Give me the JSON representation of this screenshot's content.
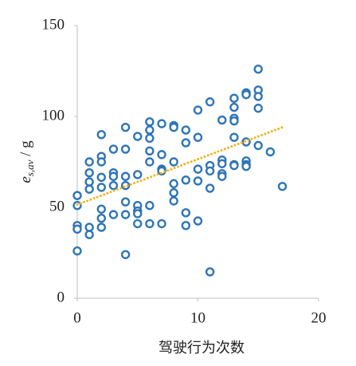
{
  "chart_data": {
    "type": "scatter",
    "xlabel": "驾驶行为次数",
    "ylabel": {
      "main": "e",
      "sub": "s,av",
      "rest": " / g"
    },
    "xlim": [
      0,
      20
    ],
    "xticks": [
      0,
      10,
      20
    ],
    "ylim": [
      0,
      150
    ],
    "yticks": [
      0,
      50,
      100,
      150
    ],
    "series": [
      {
        "color": "#2e75b6",
        "x": [
          0,
          0,
          0,
          0,
          0,
          1,
          1,
          1,
          1,
          1,
          1,
          2,
          2,
          2,
          2,
          2,
          2,
          2,
          2,
          3,
          3,
          3,
          3,
          3,
          4,
          4,
          4,
          4,
          4,
          4,
          4,
          5,
          5,
          5,
          5,
          5,
          5,
          6,
          6,
          6,
          6,
          6,
          6,
          6,
          7,
          7,
          7,
          7,
          7,
          8,
          8,
          8,
          8,
          8,
          8,
          9,
          9,
          9,
          9,
          9,
          10,
          10,
          10,
          10,
          10,
          11,
          11,
          11,
          11,
          11,
          12,
          12,
          12,
          12,
          12,
          13,
          13,
          13,
          13,
          13,
          13,
          13,
          14,
          14,
          14,
          14,
          14,
          14,
          15,
          15,
          15,
          15,
          15,
          16,
          17
        ],
        "values": [
          56.5,
          51,
          40,
          38,
          26,
          75,
          69,
          64,
          60,
          39,
          35,
          90,
          78,
          75,
          66.5,
          61,
          49,
          44,
          39,
          82,
          69,
          67,
          62,
          46,
          94,
          82,
          67,
          62,
          53,
          46,
          24,
          89,
          68,
          51,
          48,
          46.5,
          41,
          97,
          92.5,
          88,
          81,
          75,
          51,
          41,
          96,
          79,
          71,
          70,
          41,
          95,
          94,
          75,
          63,
          58,
          53.5,
          92.5,
          85.5,
          65,
          47,
          40,
          103.5,
          88.5,
          71,
          64.5,
          42.5,
          108,
          73,
          70,
          60.5,
          14.5,
          98,
          76,
          74,
          68.5,
          67,
          110,
          105,
          99,
          97.5,
          88.5,
          73.5,
          73,
          113,
          112,
          86,
          75.5,
          73.5,
          72.5,
          126,
          114.5,
          111,
          104.5,
          84,
          80.5,
          61.5
        ]
      }
    ],
    "trendline": {
      "color": "#f0b323",
      "x": [
        0,
        17
      ],
      "values": [
        51.5,
        94
      ]
    }
  }
}
